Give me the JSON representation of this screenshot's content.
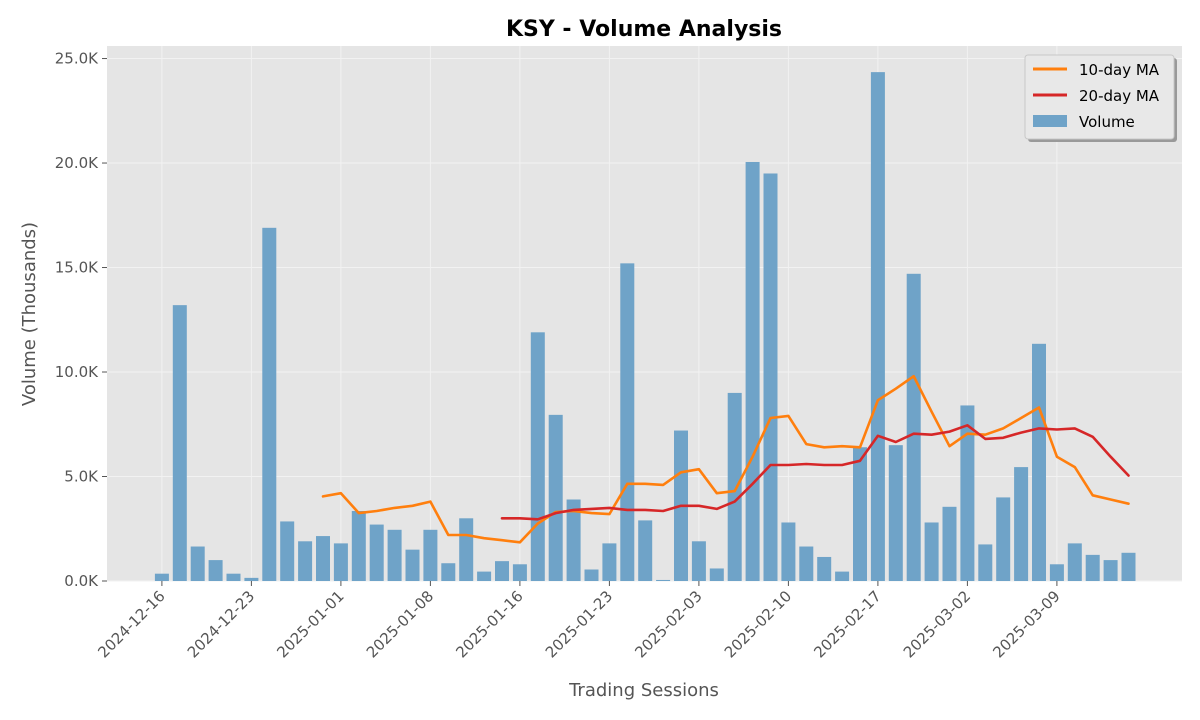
{
  "chart_data": {
    "type": "bar",
    "title": "KSY - Volume Analysis",
    "xlabel": "Trading Sessions",
    "ylabel": "Volume (Thousands)",
    "ylim": [
      0,
      25.6
    ],
    "yticks": [
      0,
      5,
      10,
      15,
      20,
      25
    ],
    "ytick_labels": [
      "0.0K",
      "5.0K",
      "10.0K",
      "15.0K",
      "20.0K",
      "25.0K"
    ],
    "xticks": [
      {
        "session": 1,
        "label": "2024-12-16"
      },
      {
        "session": 6,
        "label": "2024-12-23"
      },
      {
        "session": 11,
        "label": "2025-01-01"
      },
      {
        "session": 16,
        "label": "2025-01-08"
      },
      {
        "session": 21,
        "label": "2025-01-16"
      },
      {
        "session": 26,
        "label": "2025-01-23"
      },
      {
        "session": 31,
        "label": "2025-02-03"
      },
      {
        "session": 36,
        "label": "2025-02-10"
      },
      {
        "session": 41,
        "label": "2025-02-17"
      },
      {
        "session": 46,
        "label": "2025-03-02"
      },
      {
        "session": 51,
        "label": "2025-03-09"
      }
    ],
    "grid": true,
    "legend_position": "top-right",
    "series": [
      {
        "name": "Volume",
        "kind": "bar",
        "color": "#6fa3c8",
        "values": [
          0.35,
          13.2,
          1.65,
          1.0,
          0.35,
          0.15,
          16.9,
          2.85,
          1.9,
          2.15,
          1.8,
          3.35,
          2.7,
          2.45,
          1.5,
          2.45,
          0.85,
          3.0,
          0.45,
          0.95,
          0.8,
          11.9,
          7.95,
          3.9,
          0.55,
          1.8,
          15.2,
          2.9,
          0.05,
          7.2,
          1.9,
          0.6,
          9.0,
          20.05,
          19.5,
          2.8,
          1.65,
          1.15,
          0.45,
          6.4,
          24.35,
          6.5,
          14.7,
          2.8,
          3.55,
          8.4,
          1.75,
          4.0,
          5.45,
          11.35,
          0.8,
          1.8,
          1.25,
          1.0,
          1.35
        ]
      },
      {
        "name": "10-day MA",
        "kind": "line",
        "color": "#ff7f0e",
        "values": [
          null,
          null,
          null,
          null,
          null,
          null,
          null,
          null,
          null,
          4.05,
          4.2,
          3.25,
          3.35,
          3.5,
          3.6,
          3.8,
          2.2,
          2.2,
          2.05,
          1.95,
          1.85,
          2.75,
          3.3,
          3.35,
          3.25,
          3.2,
          4.65,
          4.65,
          4.6,
          5.2,
          5.35,
          4.2,
          4.3,
          5.95,
          7.8,
          7.9,
          6.55,
          6.4,
          6.45,
          6.4,
          8.65,
          9.2,
          9.8,
          8.1,
          6.45,
          7.05,
          7.0,
          7.3,
          7.8,
          8.3,
          5.95,
          5.45,
          4.1,
          3.9,
          3.7
        ]
      },
      {
        "name": "20-day MA",
        "kind": "line",
        "color": "#d62728",
        "values": [
          null,
          null,
          null,
          null,
          null,
          null,
          null,
          null,
          null,
          null,
          null,
          null,
          null,
          null,
          null,
          null,
          null,
          null,
          null,
          3.0,
          3.0,
          2.95,
          3.25,
          3.4,
          3.45,
          3.5,
          3.4,
          3.4,
          3.35,
          3.6,
          3.6,
          3.45,
          3.8,
          4.65,
          5.55,
          5.55,
          5.6,
          5.55,
          5.55,
          5.75,
          6.95,
          6.65,
          7.05,
          7.0,
          7.15,
          7.45,
          6.8,
          6.85,
          7.1,
          7.3,
          7.25,
          7.3,
          6.9,
          5.95,
          5.05
        ]
      }
    ],
    "legend": [
      "10-day MA",
      "20-day MA",
      "Volume"
    ]
  }
}
